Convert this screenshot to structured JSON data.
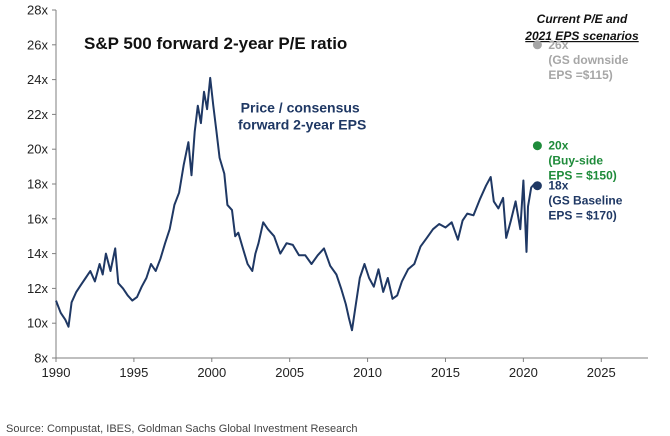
{
  "chart_data": {
    "type": "line",
    "title": "S&P 500 forward 2-year P/E ratio",
    "xlabel": "",
    "ylabel": "",
    "xlim": [
      1990,
      2028
    ],
    "ylim": [
      8,
      28
    ],
    "x_ticks": [
      "1990",
      "1995",
      "2000",
      "2005",
      "2010",
      "2015",
      "2020",
      "2025"
    ],
    "y_ticks": [
      "8x",
      "10x",
      "12x",
      "14x",
      "16x",
      "18x",
      "20x",
      "22x",
      "24x",
      "26x",
      "28x"
    ],
    "grid": false,
    "series": [
      {
        "name": "Price / consensus forward 2-year EPS",
        "color": "#1f3864",
        "x": [
          1990.0,
          1990.3,
          1990.6,
          1990.8,
          1991.0,
          1991.3,
          1991.6,
          1991.9,
          1992.2,
          1992.5,
          1992.8,
          1993.0,
          1993.2,
          1993.5,
          1993.8,
          1994.0,
          1994.3,
          1994.6,
          1994.9,
          1995.2,
          1995.5,
          1995.8,
          1996.1,
          1996.4,
          1996.7,
          1997.0,
          1997.3,
          1997.6,
          1997.9,
          1998.2,
          1998.5,
          1998.7,
          1998.9,
          1999.1,
          1999.3,
          1999.5,
          1999.7,
          1999.9,
          2000.1,
          2000.3,
          2000.5,
          2000.8,
          2001.0,
          2001.3,
          2001.5,
          2001.7,
          2002.0,
          2002.3,
          2002.6,
          2002.8,
          2003.0,
          2003.3,
          2003.6,
          2004.0,
          2004.4,
          2004.8,
          2005.2,
          2005.6,
          2006.0,
          2006.4,
          2006.8,
          2007.2,
          2007.6,
          2008.0,
          2008.3,
          2008.6,
          2008.8,
          2009.0,
          2009.2,
          2009.5,
          2009.8,
          2010.1,
          2010.4,
          2010.7,
          2011.0,
          2011.3,
          2011.6,
          2011.9,
          2012.2,
          2012.6,
          2013.0,
          2013.4,
          2013.8,
          2014.2,
          2014.6,
          2015.0,
          2015.4,
          2015.8,
          2016.1,
          2016.4,
          2016.8,
          2017.2,
          2017.6,
          2017.9,
          2018.1,
          2018.4,
          2018.7,
          2018.9,
          2019.2,
          2019.5,
          2019.8,
          2020.0,
          2020.2,
          2020.3,
          2020.5,
          2020.7
        ],
        "values": [
          11.3,
          10.6,
          10.2,
          9.8,
          11.2,
          11.8,
          12.2,
          12.6,
          13.0,
          12.4,
          13.4,
          12.8,
          14.0,
          13.0,
          14.3,
          12.3,
          12.0,
          11.6,
          11.3,
          11.5,
          12.1,
          12.6,
          13.4,
          13.0,
          13.7,
          14.6,
          15.4,
          16.8,
          17.5,
          19.1,
          20.4,
          18.5,
          21.0,
          22.5,
          21.5,
          23.3,
          22.3,
          24.1,
          22.5,
          21.0,
          19.5,
          18.6,
          16.8,
          16.5,
          15.0,
          15.2,
          14.3,
          13.4,
          13.0,
          14.0,
          14.6,
          15.8,
          15.4,
          15.0,
          14.0,
          14.6,
          14.5,
          13.9,
          13.9,
          13.4,
          13.9,
          14.3,
          13.3,
          12.8,
          12.0,
          11.1,
          10.3,
          9.6,
          10.8,
          12.6,
          13.4,
          12.6,
          12.1,
          13.1,
          11.8,
          12.6,
          11.4,
          11.6,
          12.4,
          13.1,
          13.4,
          14.4,
          14.9,
          15.4,
          15.7,
          15.5,
          15.8,
          14.8,
          15.9,
          16.3,
          16.2,
          17.1,
          17.9,
          18.4,
          17.0,
          16.6,
          17.2,
          14.9,
          15.9,
          17.0,
          15.4,
          18.2,
          14.1,
          16.7,
          17.8,
          18.0
        ]
      }
    ],
    "series_label": {
      "line1": "Price / consensus",
      "line2": "forward 2-year EPS",
      "x": 2005.8,
      "y": 22.1
    },
    "scenarios_title": {
      "line1": "Current P/E and",
      "line2": "2021 EPS scenarios"
    },
    "scenarios": [
      {
        "value": 26,
        "color": "#a6a6a6",
        "lines": [
          "26x",
          "(GS downside",
          "EPS =$115)"
        ]
      },
      {
        "value": 20.2,
        "color": "#1e8b3a",
        "lines": [
          "20x",
          "(Buy-side",
          "EPS = $150)"
        ]
      },
      {
        "value": 17.9,
        "color": "#1f3864",
        "lines": [
          "18x",
          "(GS Baseline",
          "EPS = $170)"
        ]
      }
    ],
    "scenario_x": 2020.9
  },
  "source": "Source: Compustat, IBES, Goldman Sachs Global Investment Research"
}
